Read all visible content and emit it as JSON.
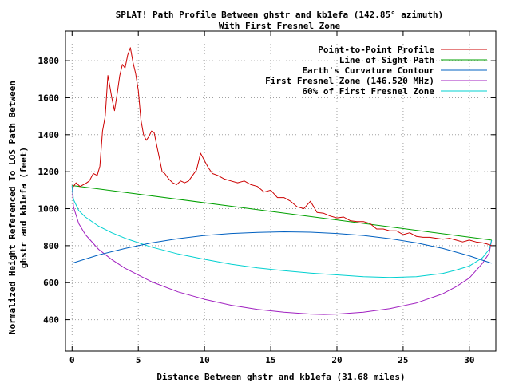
{
  "chart_data": {
    "type": "line",
    "title": "SPLAT! Path Profile Between ghstr and kb1efa (142.85° azimuth)",
    "subtitle": "With First Fresnel Zone",
    "xlabel": "Distance Between ghstr and kb1efa (31.68 miles)",
    "ylabel_line1": "Normalized Height Referenced To LOS Path Between",
    "ylabel_line2": "ghstr and kb1efa (feet)",
    "xlim": [
      -0.5,
      32
    ],
    "ylim": [
      230,
      1960
    ],
    "xticks": [
      0,
      5,
      10,
      15,
      20,
      25,
      30
    ],
    "yticks": [
      400,
      600,
      800,
      1000,
      1200,
      1400,
      1600,
      1800
    ],
    "grid": true,
    "legend_position": "top-right",
    "colors": {
      "profile": "#cc0000",
      "los": "#00a000",
      "curvature": "#0060c0",
      "fresnel": "#a020c0",
      "fresnel60": "#00d0d0"
    },
    "series": [
      {
        "key": "profile",
        "name": "Point-to-Point Profile",
        "x": [
          0,
          0.3,
          0.6,
          1.0,
          1.3,
          1.6,
          1.9,
          2.1,
          2.3,
          2.5,
          2.7,
          2.85,
          3.0,
          3.2,
          3.4,
          3.6,
          3.8,
          4.0,
          4.2,
          4.4,
          4.6,
          4.8,
          5.0,
          5.2,
          5.4,
          5.6,
          5.8,
          6.0,
          6.2,
          6.4,
          6.6,
          6.8,
          7.0,
          7.3,
          7.6,
          7.9,
          8.2,
          8.5,
          8.8,
          9.1,
          9.4,
          9.7,
          10.0,
          10.3,
          10.6,
          11.0,
          11.5,
          12.0,
          12.5,
          13.0,
          13.5,
          14.0,
          14.5,
          15.0,
          15.5,
          16.0,
          16.5,
          17.0,
          17.5,
          18.0,
          18.5,
          19.0,
          19.5,
          20.0,
          20.5,
          21.0,
          21.5,
          22.0,
          22.5,
          23.0,
          23.5,
          24.0,
          24.5,
          25.0,
          25.5,
          26.0,
          26.5,
          27.0,
          27.5,
          28.0,
          28.5,
          29.0,
          29.5,
          30.0,
          30.5,
          31.0,
          31.3,
          31.5,
          31.68
        ],
        "y": [
          1110,
          1140,
          1120,
          1135,
          1150,
          1190,
          1180,
          1230,
          1420,
          1500,
          1720,
          1660,
          1600,
          1530,
          1620,
          1720,
          1780,
          1760,
          1830,
          1870,
          1790,
          1730,
          1640,
          1480,
          1400,
          1370,
          1390,
          1420,
          1410,
          1340,
          1270,
          1200,
          1190,
          1160,
          1140,
          1130,
          1150,
          1140,
          1150,
          1180,
          1210,
          1300,
          1260,
          1220,
          1190,
          1180,
          1160,
          1150,
          1140,
          1150,
          1130,
          1120,
          1090,
          1100,
          1060,
          1060,
          1040,
          1010,
          1000,
          1040,
          980,
          975,
          960,
          950,
          955,
          935,
          930,
          930,
          920,
          890,
          890,
          880,
          880,
          860,
          870,
          850,
          845,
          845,
          840,
          835,
          840,
          830,
          820,
          830,
          820,
          815,
          810,
          805,
          800
        ]
      },
      {
        "key": "los",
        "name": "Line of Sight Path",
        "x": [
          0,
          31.68
        ],
        "y": [
          1125,
          830
        ]
      },
      {
        "key": "curvature",
        "name": "Earth's Curvature Contour",
        "x": [
          0,
          2,
          4,
          6,
          8,
          10,
          12,
          14,
          16,
          18,
          20,
          22,
          24,
          26,
          28,
          30,
          31.68
        ],
        "y": [
          705,
          750,
          785,
          815,
          838,
          855,
          866,
          872,
          875,
          873,
          866,
          855,
          838,
          815,
          785,
          745,
          705
        ]
      },
      {
        "key": "fresnel",
        "name": "First Fresnel Zone (146.520 MHz)",
        "x": [
          0,
          0.1,
          0.5,
          1,
          2,
          3,
          4,
          6,
          8,
          10,
          12,
          14,
          16,
          18,
          19,
          20,
          22,
          24,
          26,
          28,
          29,
          30,
          31,
          31.5,
          31.68
        ],
        "y": [
          1125,
          1010,
          920,
          860,
          780,
          725,
          678,
          605,
          550,
          510,
          478,
          455,
          440,
          430,
          428,
          430,
          440,
          460,
          490,
          540,
          578,
          625,
          705,
          760,
          830
        ]
      },
      {
        "key": "fresnel60",
        "name": "60% of First Fresnel Zone",
        "x": [
          0,
          0.1,
          0.5,
          1,
          2,
          3,
          4,
          6,
          8,
          10,
          12,
          14,
          16,
          18,
          20,
          22,
          24,
          26,
          28,
          29,
          30,
          31,
          31.5,
          31.68
        ],
        "y": [
          1125,
          1050,
          990,
          955,
          905,
          870,
          840,
          792,
          755,
          726,
          700,
          680,
          665,
          652,
          642,
          632,
          628,
          632,
          650,
          668,
          690,
          735,
          780,
          830
        ]
      }
    ]
  }
}
